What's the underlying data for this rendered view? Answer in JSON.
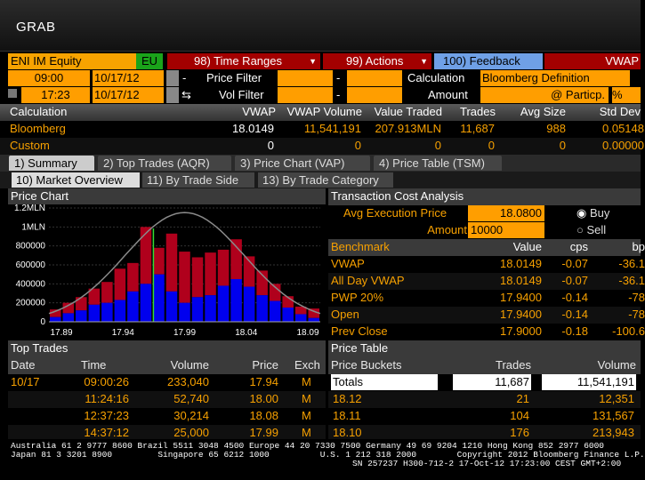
{
  "window": {
    "title": "GRAB"
  },
  "toolbar": {
    "security": "ENI IM Equity",
    "exchange": "EU",
    "time_ranges": "98) Time Ranges",
    "actions": "99) Actions",
    "feedback": "100) Feedback",
    "vwap_label": "VWAP"
  },
  "filters": {
    "start_time": "09:00",
    "start_date": "10/17/12",
    "end_time": "17:23",
    "end_date": "10/17/12",
    "price_filter_label": "Price Filter",
    "vol_filter_label": "Vol Filter",
    "dash": "-",
    "calculation_label": "Calculation",
    "calculation_value": "Bloomberg Definition",
    "amount_label": "Amount",
    "amount_value": "@ Particp.",
    "pct": "%"
  },
  "calc_table": {
    "headers": [
      "Calculation",
      "VWAP",
      "VWAP Volume",
      "Value Traded",
      "Trades",
      "Avg Size",
      "Std Dev"
    ],
    "rows": [
      [
        "Bloomberg",
        "18.0149",
        "11,541,191",
        "207.913MLN",
        "11,687",
        "988",
        "0.05148"
      ],
      [
        "Custom",
        "0",
        "0",
        "0",
        "0",
        "0",
        "0.00000"
      ]
    ]
  },
  "tabs": [
    "1) Summary",
    "2) Top Trades (AQR)",
    "3) Price Chart (VAP)",
    "4) Price Table (TSM)"
  ],
  "subtabs": [
    "10) Market Overview",
    "11) By Trade Side",
    "13) By Trade Category"
  ],
  "price_chart": {
    "title": "Price Chart"
  },
  "chart_data": {
    "type": "bar",
    "title": "Price Chart",
    "ylim": [
      0,
      1200000
    ],
    "yticks": [
      "0",
      "200000",
      "400000",
      "600000",
      "800000",
      "1MLN",
      "1.2MLN"
    ],
    "xticks": [
      "17.89",
      "17.94",
      "17.99",
      "18.04",
      "18.09"
    ],
    "series": [
      {
        "color": "#0000ee",
        "values": [
          50000,
          90000,
          120000,
          180000,
          200000,
          230000,
          320000,
          400000,
          500000,
          320000,
          200000,
          260000,
          280000,
          380000,
          450000,
          370000,
          280000,
          220000,
          150000,
          80000,
          40000
        ]
      },
      {
        "color": "#b0001c",
        "values": [
          130000,
          200000,
          260000,
          350000,
          420000,
          560000,
          620000,
          1000000,
          780000,
          930000,
          740000,
          680000,
          730000,
          760000,
          870000,
          690000,
          540000,
          400000,
          270000,
          160000,
          140000
        ]
      }
    ]
  },
  "tca": {
    "title": "Transaction Cost Analysis",
    "avg_exec_label": "Avg Execution Price",
    "avg_exec_value": "18.0800",
    "amount_label": "Amount",
    "amount_value": "10000",
    "buy_label": "Buy",
    "sell_label": "Sell",
    "bench_headers": [
      "Benchmark",
      "Value",
      "cps",
      "bp"
    ],
    "bench_rows": [
      [
        "VWAP",
        "18.0149",
        "-0.07",
        "-36.1"
      ],
      [
        "All Day VWAP",
        "18.0149",
        "-0.07",
        "-36.1"
      ],
      [
        "PWP 20%",
        "17.9400",
        "-0.14",
        "-78"
      ],
      [
        "Open",
        "17.9400",
        "-0.14",
        "-78"
      ],
      [
        "Prev Close",
        "17.9000",
        "-0.18",
        "-100.6"
      ]
    ]
  },
  "top_trades": {
    "title": "Top Trades",
    "headers": [
      "Date",
      "Time",
      "Volume",
      "Price",
      "Exch"
    ],
    "rows": [
      [
        "10/17",
        "09:00:26",
        "233,040",
        "17.94",
        "M"
      ],
      [
        "",
        "11:24:16",
        "52,740",
        "18.00",
        "M"
      ],
      [
        "",
        "12:37:23",
        "30,214",
        "18.08",
        "M"
      ],
      [
        "",
        "14:37:12",
        "25,000",
        "17.99",
        "M"
      ]
    ]
  },
  "price_table": {
    "title": "Price Table",
    "headers": [
      "Price Buckets",
      "Trades",
      "Volume"
    ],
    "rows": [
      [
        "Totals",
        "11,687",
        "11,541,191"
      ],
      [
        "18.12",
        "21",
        "12,351"
      ],
      [
        "18.11",
        "104",
        "131,567"
      ],
      [
        "18.10",
        "176",
        "213,943"
      ]
    ]
  },
  "footer": {
    "line1": "Australia 61 2 9777 8600 Brazil 5511 3048 4500 Europe 44 20 7330 7500 Germany 49 69 9204 1210 Hong Kong 852 2977 6000",
    "line2": "Japan 81 3 3201 8900         Singapore 65 6212 1000          U.S. 1 212 318 2000        Copyright 2012 Bloomberg Finance L.P.",
    "line3": "SN 257237 H300-712-2 17-Oct-12 17:23:00 CEST GMT+2:00"
  }
}
